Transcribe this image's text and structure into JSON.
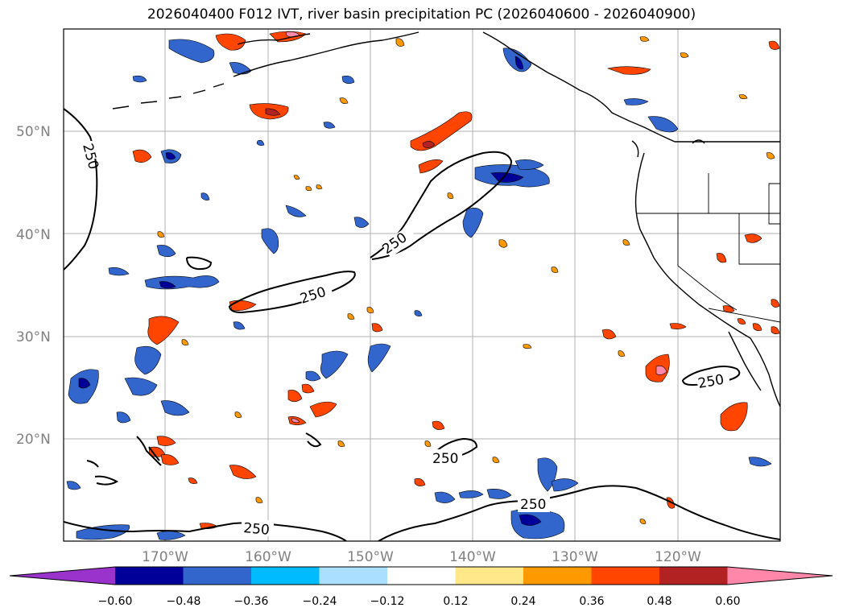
{
  "title": "2026040400 F012 IVT, river basin precipitation PC (2026040600 - 2026040900)",
  "map": {
    "lat_ticks": [
      "50°N",
      "40°N",
      "30°N",
      "20°N"
    ],
    "lon_ticks": [
      "170°W",
      "160°W",
      "150°W",
      "140°W",
      "130°W",
      "120°W"
    ],
    "contour_level": "250"
  },
  "colorbar": {
    "levels": [
      "−0.60",
      "−0.48",
      "−0.36",
      "−0.24",
      "−0.12",
      "0.12",
      "0.24",
      "0.36",
      "0.48",
      "0.60"
    ],
    "colors": [
      "#9933cc",
      "#000099",
      "#3366cc",
      "#00bbff",
      "#aadfff",
      "#ffffff",
      "#ffe88a",
      "#ff9900",
      "#ff4500",
      "#b22222",
      "#ff88aa"
    ]
  }
}
